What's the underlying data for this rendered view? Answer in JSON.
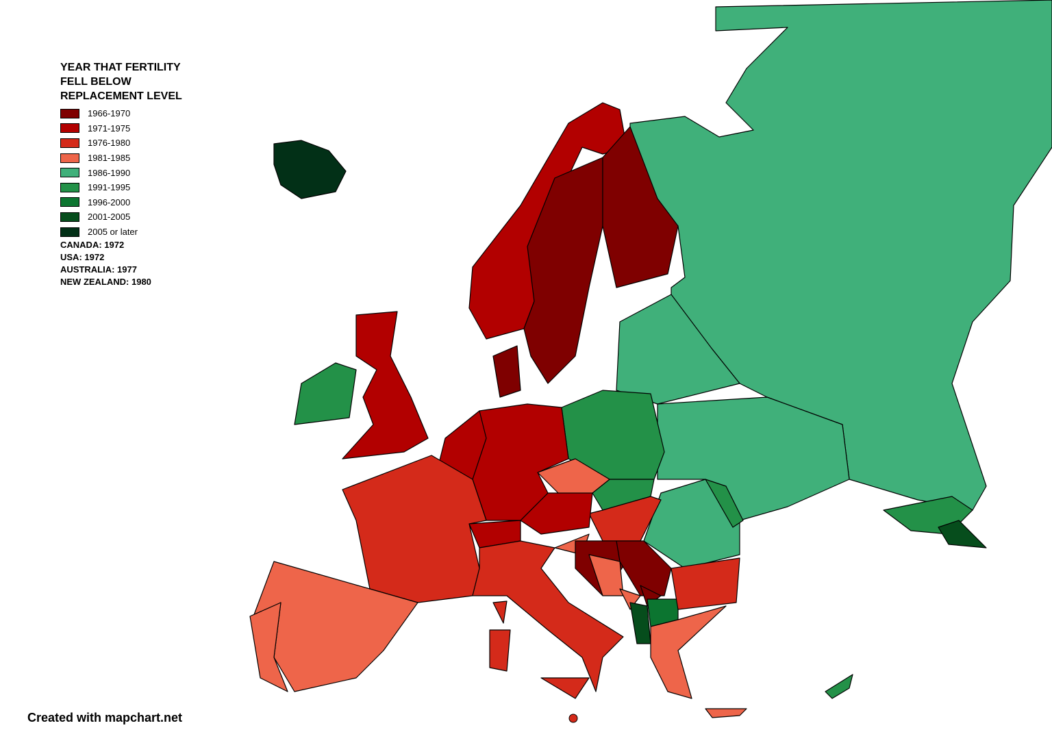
{
  "legend": {
    "title": "YEAR THAT FERTILITY FELL BELOW REPLACEMENT LEVEL",
    "items": [
      {
        "label": "1966-1970",
        "color": "#7f0000"
      },
      {
        "label": "1971-1975",
        "color": "#b20000"
      },
      {
        "label": "1976-1980",
        "color": "#d42a1a"
      },
      {
        "label": "1981-1985",
        "color": "#ee654a"
      },
      {
        "label": "1986-1990",
        "color": "#40b07a"
      },
      {
        "label": "1991-1995",
        "color": "#239148"
      },
      {
        "label": "1996-2000",
        "color": "#0c7530"
      },
      {
        "label": "2001-2005",
        "color": "#064d1c"
      },
      {
        "label": "2005 or later",
        "color": "#023017"
      }
    ],
    "notes": [
      "CANADA: 1972",
      "USA: 1972",
      "AUSTRALIA: 1977",
      "NEW ZEALAND: 1980"
    ]
  },
  "credit": "Created with mapchart.net"
}
